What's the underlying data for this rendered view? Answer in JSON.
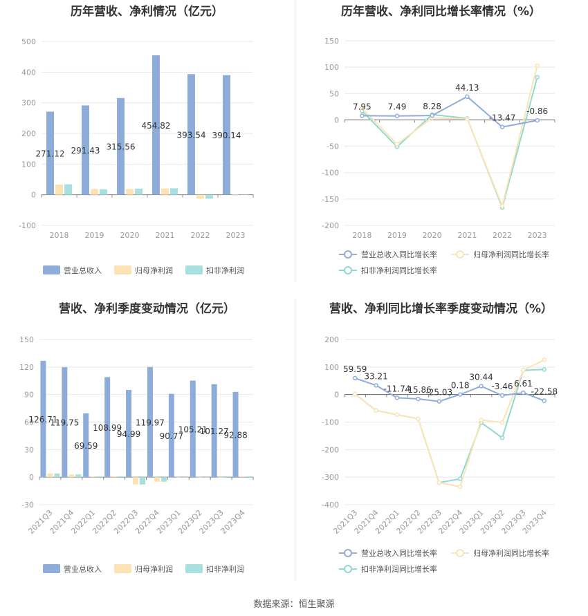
{
  "source": "数据来源：恒生聚源",
  "chart_data": [
    {
      "type": "bar",
      "title": "历年营收、净利情况（亿元）",
      "categories": [
        "2018",
        "2019",
        "2020",
        "2021",
        "2022",
        "2023"
      ],
      "ylim": [
        -100,
        500
      ],
      "yticks": [
        -100,
        0,
        100,
        200,
        300,
        400,
        500
      ],
      "grid": true,
      "legend_position": "bottom",
      "series": [
        {
          "name": "营业总收入",
          "color": "#8eacd9",
          "values": [
            271.12,
            291.43,
            315.56,
            454.82,
            393.54,
            390.14
          ],
          "labels": [
            "271.12",
            "291.43",
            "315.56",
            "454.82",
            "393.54",
            "390.14"
          ]
        },
        {
          "name": "归母净利润",
          "color": "#fde3b4",
          "values": [
            33,
            19,
            19,
            20,
            -13,
            1
          ]
        },
        {
          "name": "扣非净利润",
          "color": "#a8e0e0",
          "values": [
            34,
            18,
            20,
            21,
            -13,
            1
          ]
        }
      ]
    },
    {
      "type": "line",
      "title": "历年营收、净利同比增长率情况（%）",
      "categories": [
        "2018",
        "2019",
        "2020",
        "2021",
        "2022",
        "2023"
      ],
      "ylim": [
        -200,
        150
      ],
      "yticks": [
        -200,
        -150,
        -100,
        -50,
        0,
        50,
        100,
        150
      ],
      "grid": true,
      "legend_position": "bottom",
      "series": [
        {
          "name": "营业总收入同比增长率",
          "color": "#8eacd9",
          "values": [
            7.95,
            7.49,
            8.28,
            44.13,
            -13.47,
            -0.86
          ],
          "labels": [
            "7.95",
            "7.49",
            "8.28",
            "44.13",
            "-13.47",
            "-0.86"
          ]
        },
        {
          "name": "归母净利润同比增长率",
          "color": "#fde3b4",
          "values": [
            22,
            -46,
            4,
            2,
            -163,
            103
          ]
        },
        {
          "name": "扣非净利润同比增长率",
          "color": "#8fdad0",
          "values": [
            17,
            -51,
            10,
            3,
            -166,
            81
          ]
        }
      ]
    },
    {
      "type": "bar",
      "title": "营收、净利季度变动情况（亿元）",
      "categories": [
        "2021Q3",
        "2021Q4",
        "2022Q1",
        "2022Q2",
        "2022Q3",
        "2022Q4",
        "2023Q1",
        "2023Q2",
        "2023Q3",
        "2023Q4"
      ],
      "ylim": [
        -30,
        150
      ],
      "yticks": [
        -30,
        0,
        30,
        60,
        90,
        120,
        150
      ],
      "grid": true,
      "legend_position": "bottom",
      "series": [
        {
          "name": "营业总收入",
          "color": "#8eacd9",
          "values": [
            126.71,
            119.75,
            69.59,
            108.99,
            94.99,
            119.97,
            90.77,
            105.21,
            101.27,
            92.88
          ],
          "labels": [
            "126.71",
            "119.75",
            "69.59",
            "108.99",
            "94.99",
            "119.97",
            "90.77",
            "105.21",
            "101.27",
            "92.88"
          ]
        },
        {
          "name": "归母净利润",
          "color": "#fde3b4",
          "values": [
            4,
            3,
            1,
            1,
            -8,
            -5,
            0,
            0,
            0,
            1
          ]
        },
        {
          "name": "扣非净利润",
          "color": "#a8e0e0",
          "values": [
            4,
            3,
            1,
            1,
            -8,
            -5,
            0,
            0,
            1,
            1
          ]
        }
      ]
    },
    {
      "type": "line",
      "title": "营收、净利同比增长率季度变动情况（%）",
      "categories": [
        "2021Q3",
        "2021Q4",
        "2022Q1",
        "2022Q2",
        "2022Q3",
        "2022Q4",
        "2023Q1",
        "2023Q2",
        "2023Q3",
        "2023Q4"
      ],
      "ylim": [
        -400,
        200
      ],
      "yticks": [
        -400,
        -300,
        -200,
        -100,
        0,
        100,
        200
      ],
      "grid": true,
      "legend_position": "bottom",
      "series": [
        {
          "name": "营业总收入同比增长率",
          "color": "#8eacd9",
          "values": [
            59.59,
            33.21,
            -11.74,
            -15.86,
            -25.03,
            0.18,
            30.44,
            -3.46,
            6.61,
            -22.58
          ],
          "labels": [
            "59.59",
            "33.21",
            "-11.74",
            "-15.86",
            "-25.03",
            "0.18",
            "30.44",
            "-3.46",
            "6.61",
            "-22.58"
          ]
        },
        {
          "name": "归母净利润同比增长率",
          "color": "#fde3b4",
          "values": [
            2,
            -58,
            -73,
            -88,
            -320,
            -335,
            -92,
            -102,
            88,
            126
          ]
        },
        {
          "name": "扣非净利润同比增长率",
          "color": "#8fdad0",
          "values": [
            2,
            -58,
            -73,
            -88,
            -320,
            -306,
            -102,
            -157,
            88,
            91
          ]
        }
      ]
    }
  ]
}
